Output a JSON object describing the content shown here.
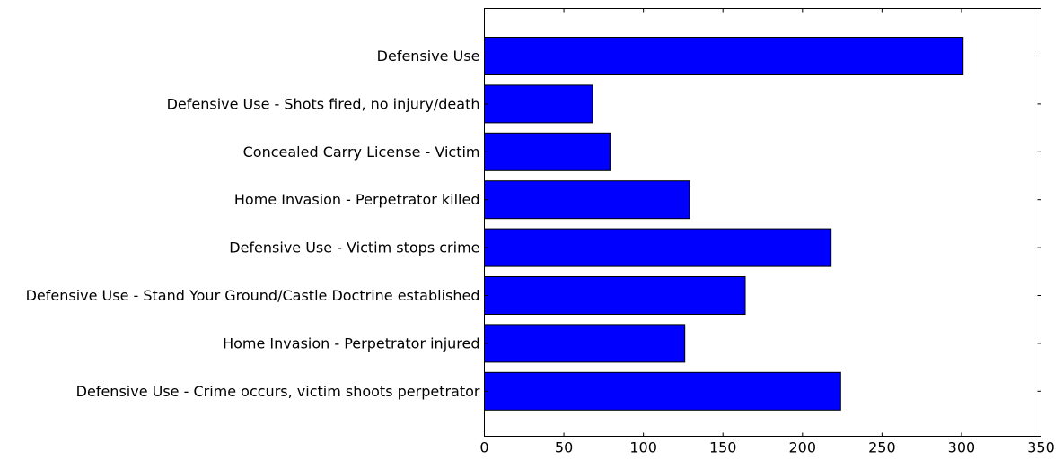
{
  "chart_data": {
    "type": "bar",
    "orientation": "horizontal",
    "title": "",
    "xlabel": "",
    "ylabel": "",
    "categories": [
      "Defensive Use",
      "Defensive Use - Shots fired, no injury/death",
      "Concealed Carry License - Victim",
      "Home Invasion - Perpetrator killed",
      "Defensive Use - Victim stops crime",
      "Defensive Use - Stand Your Ground/Castle Doctrine established",
      "Home Invasion - Perpetrator injured",
      "Defensive Use - Crime occurs, victim shoots perpetrator"
    ],
    "values": [
      301,
      68,
      79,
      129,
      218,
      164,
      126,
      224
    ],
    "xlim": [
      0,
      350
    ],
    "xticks": [
      0,
      50,
      100,
      150,
      200,
      250,
      300,
      350
    ],
    "grid": false,
    "bar_color": "#0000ff",
    "edge_color": "#000000"
  }
}
